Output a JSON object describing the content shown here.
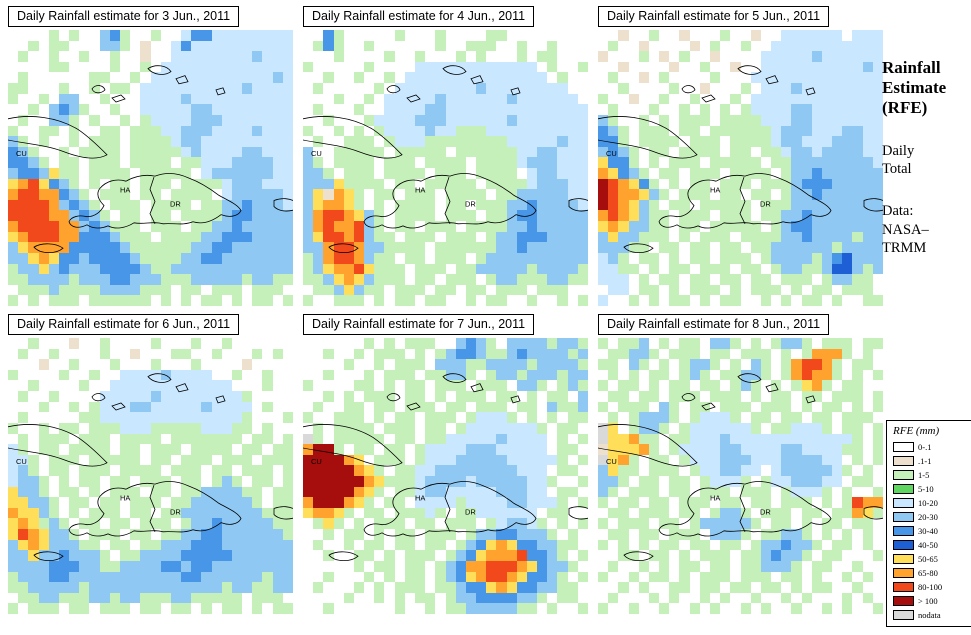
{
  "map_cols": 28,
  "map_rows": 26,
  "palette": {
    ".": "#FFFFFF",
    "t": "#EDE0CC",
    "g": "#C6F0BA",
    "G": "#5FD65F",
    "c": "#C9E8FF",
    "b": "#8FC8F2",
    "B": "#4896E8",
    "D": "#1F5FD6",
    "y": "#FFDE59",
    "o": "#FFA22E",
    "r": "#F1491C",
    "R": "#A60D0D",
    "n": "#D9D9D9"
  },
  "map_labels": {
    "cu": "CU",
    "ha": "HA",
    "dr": "DR"
  },
  "sidebar": {
    "title_lines": [
      "Rainfall",
      "Estimate",
      "(RFE)"
    ],
    "subtitle_lines": [
      "Daily",
      "Total"
    ],
    "source_lines": [
      "Data:",
      "NASA–",
      "TRMM"
    ]
  },
  "legend": {
    "title": "RFE (mm)",
    "entries": [
      {
        "label": "0-.1",
        "color": "#FFFFFF"
      },
      {
        "label": ".1-1",
        "color": "#EDE0CC"
      },
      {
        "label": "1-5",
        "color": "#C6F0BA"
      },
      {
        "label": "5-10",
        "color": "#5FD65F"
      },
      {
        "label": "10-20",
        "color": "#C9E8FF"
      },
      {
        "label": "20-30",
        "color": "#8FC8F2"
      },
      {
        "label": "30-40",
        "color": "#4896E8"
      },
      {
        "label": "40-50",
        "color": "#1F5FD6"
      },
      {
        "label": "50-65",
        "color": "#FFDE59"
      },
      {
        "label": "65-80",
        "color": "#FFA22E"
      },
      {
        "label": "80-100",
        "color": "#F1491C"
      },
      {
        "label": "> 100",
        "color": "#A60D0D"
      },
      {
        "label": "nodata",
        "color": "#D9D9D9"
      }
    ]
  },
  "panels": [
    {
      "title": "Daily Rainfall estimate for  3 Jun., 2011",
      "grid": [
        "....g.g..bBg..g..cBBcccccccc",
        "..g.gg...bbg.t..cBcccccccccc",
        ".g..g..g..g..t..ccccccccbccc",
        "....gg....g..g.ccccccccccccc",
        ".g......gg..g.ccccccccccccbc",
        "gg...g..g.gg.ccccccccccbcccc",
        "g..g.bb..g...ccccbcccccccccc",
        "..g.bBbg..g..cccccbbcccccccc",
        ".g..bbg.g..g.gccccbbbccccccc",
        "g..gg.g..gg.gggccbbbccccbccc",
        "bg.g..g.ggg.ggggcbbccccccccc",
        "Bbg..g.gggg.gggggcbccccbbccc",
        "BBbg.gg.ggg.gggg.ggcccbbbbcc",
        "bBBbygg.gggg.ggggg.cbbbbbbcc",
        "yoryBbg.g.gg.ggg.ggggcbbbccc",
        "orrooBbg.ggg.gg.gggg.cbbbbbc",
        "rrrrobBbg.ggg.gggg.ggbbBbbbc",
        "rrrroobBbg.gg.gg.ggggbBBbbbb",
        "orrrroobBbggg.ggg.ggbbBbbbbb",
        "yorrrooBBBbggg.ggggbbBBBbbbb",
        "byooooBBBBBbggggggbbBBbbbbbb",
        "bbyoyBBbBBBBbggggbbBBbbbbbbb",
        "gbbybBbbbBBBBbggbbbbbbbbbbbb",
        "ggbbbbgbbbBBbbbgggbbbbbgbbgg",
        ".gggbggggbbbbggg.gg.ggg.ggg.",
        "g.g.ggg.gggggg.g.g.gg.g.gg.g"
      ]
    },
    {
      "title": "Daily Rainfall estimate for  4 Jun., 2011",
      "grid": [
        "..Bg.....g...g....gg........",
        ".gBg..g......g..ggg..g..g...",
        "...g....g..g...g.g...g.gg...",
        "g.....g....cccccccccccc.g..g",
        "..g..g..g.cccccccccccccc.g..",
        ".g.....g.ccccccccbcccccccc..",
        "...g..g.cccccbccccccbcccccc.",
        ".g...g..ccccbbcccccccccccccc",
        "..g...gccccbbbccccccbccccccc",
        "g..g.g.gccccbccgggcccccccccc",
        ".g..ggg.gcccggggggggcccccbcc",
        "b..ggggg.ggggg.ggggggccbbccc",
        "bg.gggg.ggg.gggg.ggggcbbbccc",
        "bbg.ggg.gggg.ggg.gggg.cbbccc",
        "bbbygggg.gg.ggggg.ggggcbbbcc",
        "bytoyg.gg.ggg.gggg.ggbbbbbcc",
        "byooyg.g.gggg.gg.gggbbBbbbbc",
        "borroybg.gggg.ggg.ggbBBbbbbb",
        "boroorbg.gg.ggg.ggggbbBbbbbb",
        "byrrorbgg.ggg.ggg.gbbBBBbbbb",
        "bborrobbgggg.ggggggbbBbbbbbb",
        "gborrobgg.gg.ggg.gbbbbbbbbbb",
        "gbyooryggg.ggg.ggbbbbbgbbbbg",
        "ggbyoybggg.gg.ggg.gbbgggbbgg",
        ".ggbybgg.ggg.gg.gg.ggg.ggg..",
        "g..ggg.g.gg.gg..g.gg..g..g.g"
      ]
    },
    {
      "title": "Daily Rainfall estimate for  5 Jun., 2011",
      "grid": [
        "..t..g..t...g..t..cccccc.ccc",
        ".g..t....t.g..g..ccccccccccc",
        "t...g.t.g..t....cccccbcccccc",
        "..t....t..g..t..ccccccccccbc",
        ".g..t.g....g...ccccccccccccc",
        "..g....g..t...g.cccbcccccccc",
        "g..t..g..g...g.ccccccccccccc",
        ".g...g..g.g.g.gccccbbccccccc",
        "bg..g.g.ggg.ggggcccbbccccccc",
        "Bbg.ggg.gg.ggggggcbbbcccbbcc",
        "BBg.gggg.ggg.ggggcbbcccbbbcc",
        "bBbg.gg.gggg.gg.ggcbbcbbbbcc",
        "yBBg.g.ggg.ggggg.ggbbbbbbbbc",
        "oyBbg.gg.ggg.gggg.gbbBbbbbbb",
        "RroyBg.g.gg.ggg.gggbBBBbbbbb",
        "Rrooybg.ggg.gg.gg.gbbBbbbbbb",
        "Rroybg.gg.ggggg.gggbbbbbbbbb",
        "oroybgg.ggg.ggg.ggbbBbbbbbbb",
        "yoybbgg.gg.ggggg.gbBBbbbbbbb",
        "bybbggg.g.ggg.ggggbbBbbbbgbb",
        "bbbgg.gg.gg.gg.ggbbbbbbgbbbb",
        "cbg.gg.g.gg.ggg.gbbbbgbBDbbb",
        "ccgg.g.gg.ggg.gg.gbbggbDDbgb",
        "ccc.g.gg.gg.gg.gg.ggg.gbbgg.",
        ".cc.gg.g.ggg.g.ggg.g.gg.ggg.",
        "c..g.g.gg.g.gg..g.g.gg.g..gg"
      ]
    },
    {
      "title": "Daily Rainfall estimate for  6 Jun., 2011",
      "grid": [
        "..g...t..g....g...g..g......",
        ".g..g....g..t...gg..g...g.g.",
        "...t..g...g...g...g....t....",
        "g....g..g..ccccbcccc..g..g..",
        "..g....g..cccccccccccc...g..",
        ".g..g....cccccbccccccccg....",
        "...g..g.gcccbbcccccbcccc.g..",
        ".g.....ggccccccccccccccg...g",
        "g..g.gg.gggcccgggggcccgg.g..",
        ".g.ggg.ggg.gggg.ggggggg.gg.g",
        "cg.gg.gggg.gg.ggg.gggg.gg.gg",
        "ccg.ggg.ggggg.gg.ggg.ggg.ggg",
        "cbg.gg.ggg.gggg.ggg.gg.ggg.g",
        "cbbg.g.gg.gg.ggg.gg.gbg.gg.g",
        "ybbg.gg.g.ggg.gg.ggbbbbgg.gg",
        "yybbg.gg.gg.ggg.ggbbbbbbg.gg",
        "oyybg.g.ggg.gg.ggbbbbbbbbggg",
        "yoygbg.gg.gg.ggg.gbbBbbbbbgg",
        "yroybbg.ggg.gg.ggbbBBbbbbbbg",
        "byoybbbgg.gg.ggbbbBBBbbbbbbb",
        "bbybbBbbbg.ggbbbbBBBBBbbbbbb",
        "bbbbBBBbbggbbbbBBbBBbbbbbbbb",
        "gbbbBBbbbbbbbbbbbBBbbbbbbgbb",
        "ggbbbbbgbbbbbbbbbbbbbgbbggbb",
        ".ggbbgggbbgbbgggbbggggg.ggg.",
        "g.ggg.gg.ggg.gg.gg.g.gg.g.gg"
      ]
    },
    {
      "title": "Daily Rainfall estimate for  7 Jun., 2011",
      "grid": [
        "......g.g.ggg..bBbg.bbbbgbbg",
        "..g..g.ggg.g.gbBBbggbBbbbbgb",
        "....g..g.ggg.bbbggbbbbgbbbbg",
        "..g...g.ggg.ggbbg.gbbgbbbgbb",
        "g....gg.g.gg.ggg.ggg.bbg.gbg",
        "..g.g.ggg.gg.g.ggg.gg.g.gg.b",
        ".g..gg.gg.ggg.gg.ggg.gg.bggb",
        "g..ggg.g.gg.ggg.gcccg.g.g.gg",
        ".g.gggg.ggg.gg.gcccccccg.gg.",
        "ng.ggggg.gg.ggcccccbcccc.g.g",
        "oRRg.gg.gg.gccccbbbccccc.gg.",
        "RRRRoy.ggg.gcccbbbbbcccccg.g",
        "RRRRRoyg.ggccbbbbbbbbccc.gg.",
        "RRRRRRoygggcbbbbcbbbbbccg..g",
        "RRRRRoyg.ggcbbcccccbbbcc.gg.",
        "oRRRoyg.gg.ccccgccccbbcccg.g",
        "yooyg.gg.gggcg.ggcccccc.gg..",
        ".gyg.g.ggg.gg.ggg.gcbbcg.g.g",
        "..g.gg.g.gg.ggg.gbbBBbbbg.g.",
        ".g..g.gg.gg.gg.gbByoyBBbbgg.",
        "..g..gg.g.ggg.gbByooorBBbg.g",
        ".....g.gg.gg.gbBoorrroyBbbg.",
        "..g...g.g.gg.gbByorroyBBbg.g",
        ".g...g.g.ggg.ggbBByoyBBbbgg.",
        "....g..g.g.gg.gbbBBBBbbg.gg.",
        "..g......g..g.ggbbbbbgg.g..g"
      ]
    },
    {
      "title": "Daily Rainfall estimate for  8 Jun., 2011",
      "grid": [
        "g.ggb.g.gg.bbg.g.gbbg.ggg.gg",
        ".ggbbg.ggg.gg.ggg.g.gooog.g.",
        "gg.bg.g.gbbg.g.bg.gorrog.gg.",
        ".g.g.gg.gbg.ggbbg.goroog.g.g",
        "g.gg.g.gg.gg.gbg.g.gyog.gg..",
        ".gg.gg.ggg.ggg.g.gg.gg.ggg.g",
        "g.ggg.bg.gg.ggg.ggg.g.gg.g.g",
        ".g.gbbbg.gcccg.gg.gg.gg.ggg.",
        "ny.gbbg.gccccccg.ggcccg.gg.g",
        "nyyogg.ggcccbccccccccccccg.g",
        "tyyyog.gccccbbccccbbccccgg.g",
        "nyog.gg.gcccbbbcccbbbbcc.g.g",
        "bygg.ggg.gccbbcc.cbbbbbcg.g.",
        "bbg.gg.gg.gcccg.gccbbbcc.gg.",
        "bg.ggg.gg.ggg.ggg.gcccg.g..g",
        "g.gg.gg.ggg.gg.gg.ggg.g.groo",
        ".gg.ggg.gg.gbbg.ggg.gg.ggoyg",
        "g.ggg.gg.gbbbbbg.gg.g.gg.gg.",
        ".gg.gg.ggg.bbbg.ggbbg.g.g.g.",
        "g.g.g.gg.gg.gg.gbbBbbg.gg.g.",
        "..gg.gg.g.ggg.ggbBbbg.gg...g",
        ".g..g.g.gg.gg.ggbbbg.gg..g..",
        "g..g.gg.g.ggg.ggg.gg.g..g.g.",
        "..g.g..gg.gg.gg.gg.g.gg..g..",
        ".g...g.g..g.g..g..g.g...g.g.",
        "g..g..g..g.g..g.g..g..g.g..g"
      ]
    }
  ]
}
